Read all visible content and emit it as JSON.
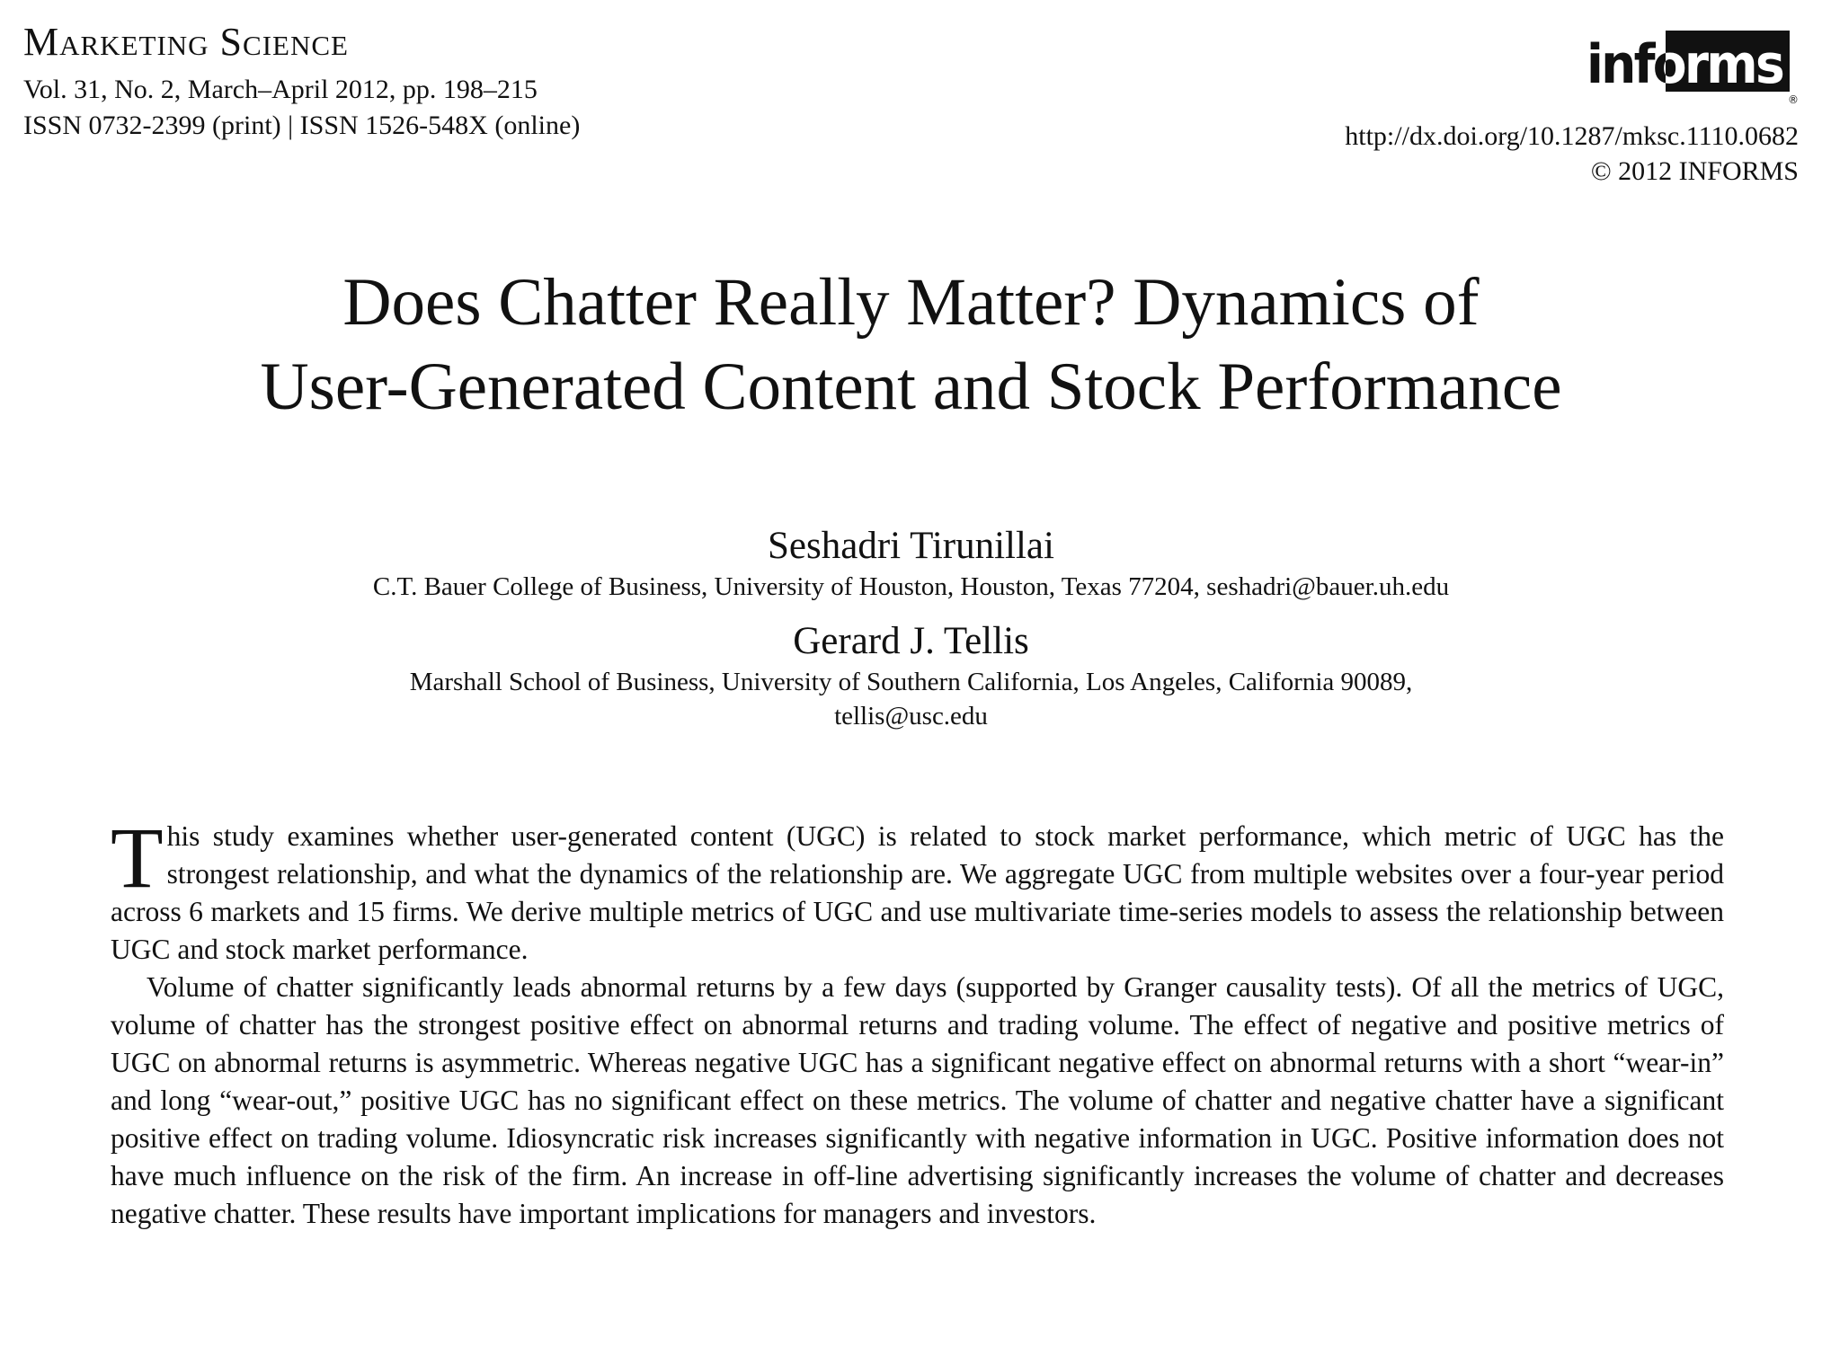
{
  "header": {
    "journal_name": "Marketing Science",
    "volume_line": "Vol. 31, No. 2, March–April 2012, pp. 198–215",
    "issn_line": "ISSN 0732-2399 (print) | ISSN 1526-548X (online)",
    "doi_line": "http://dx.doi.org/10.1287/mksc.1110.0682",
    "copyright_line": "© 2012 INFORMS",
    "logo_text": "informs",
    "logo_registered_mark": "®"
  },
  "title": {
    "line1": "Does Chatter Really Matter? Dynamics of",
    "line2": "User-Generated Content and Stock Performance"
  },
  "authors": [
    {
      "name": "Seshadri Tirunillai",
      "affiliation_lines": [
        "C.T. Bauer College of Business, University of Houston, Houston, Texas 77204, seshadri@bauer.uh.edu"
      ]
    },
    {
      "name": "Gerard J. Tellis",
      "affiliation_lines": [
        "Marshall School of Business, University of Southern California, Los Angeles, California 90089,",
        "tellis@usc.edu"
      ]
    }
  ],
  "abstract": {
    "dropcap": "T",
    "paragraph1_rest": "his study examines whether user-generated content (UGC) is related to stock market performance, which metric of UGC has the strongest relationship, and what the dynamics of the relationship are. We aggregate UGC from multiple websites over a four-year period across 6 markets and 15 firms. We derive multiple metrics of UGC and use multivariate time-series models to assess the relationship between UGC and stock market performance.",
    "paragraph2": "Volume of chatter significantly leads abnormal returns by a few days (supported by Granger causality tests). Of all the metrics of UGC, volume of chatter has the strongest positive effect on abnormal returns and trading volume. The effect of negative and positive metrics of UGC on abnormal returns is asymmetric. Whereas negative UGC has a significant negative effect on abnormal returns with a short “wear-in” and long “wear-out,” positive UGC has no significant effect on these metrics. The volume of chatter and negative chatter have a significant positive effect on trading volume. Idiosyncratic risk increases significantly with negative information in UGC. Positive information does not have much influence on the risk of the firm. An increase in off-line advertising significantly increases the volume of chatter and decreases negative chatter. These results have important implications for managers and investors."
  }
}
